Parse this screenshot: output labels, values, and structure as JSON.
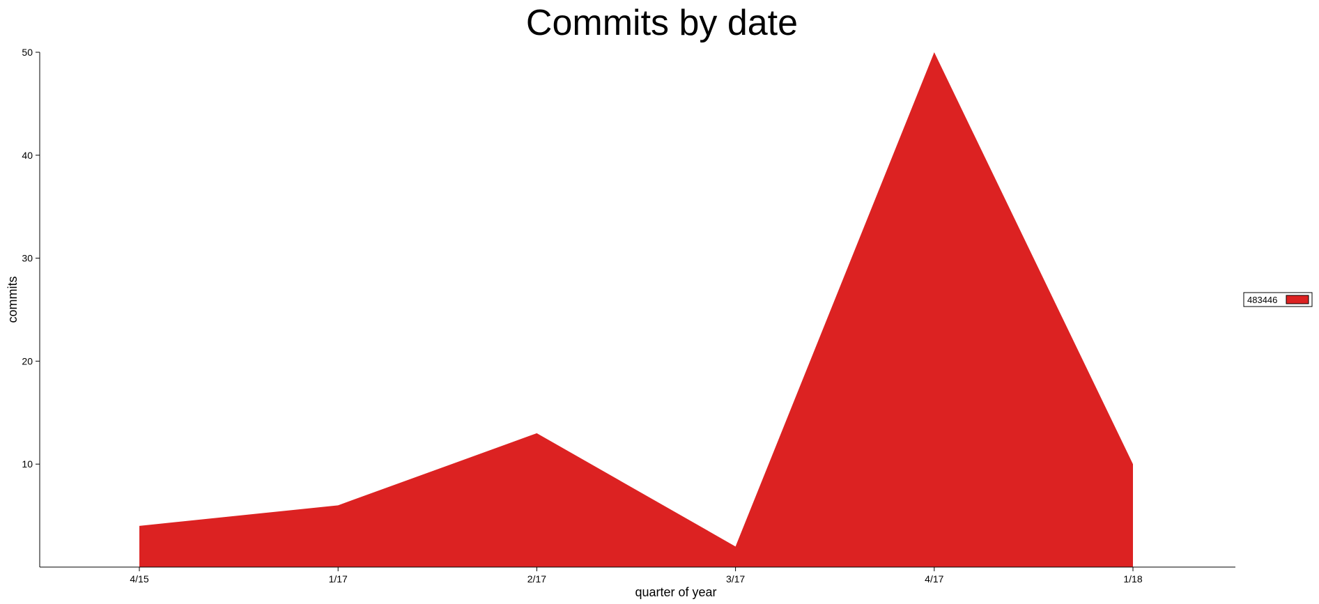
{
  "chart_data": {
    "type": "area",
    "title": "Commits by date",
    "xlabel": "quarter of year",
    "ylabel": "commits",
    "categories": [
      "4/15",
      "1/17",
      "2/17",
      "3/17",
      "4/17",
      "1/18"
    ],
    "series": [
      {
        "name": "483446",
        "values": [
          4,
          6,
          13,
          2,
          50,
          10
        ]
      }
    ],
    "ylim": [
      0,
      50
    ],
    "yticks": [
      10,
      20,
      30,
      40,
      50
    ],
    "grid": false,
    "legend_position": "right"
  },
  "colors": {
    "series": "#dc2222",
    "axis": "#000000"
  }
}
